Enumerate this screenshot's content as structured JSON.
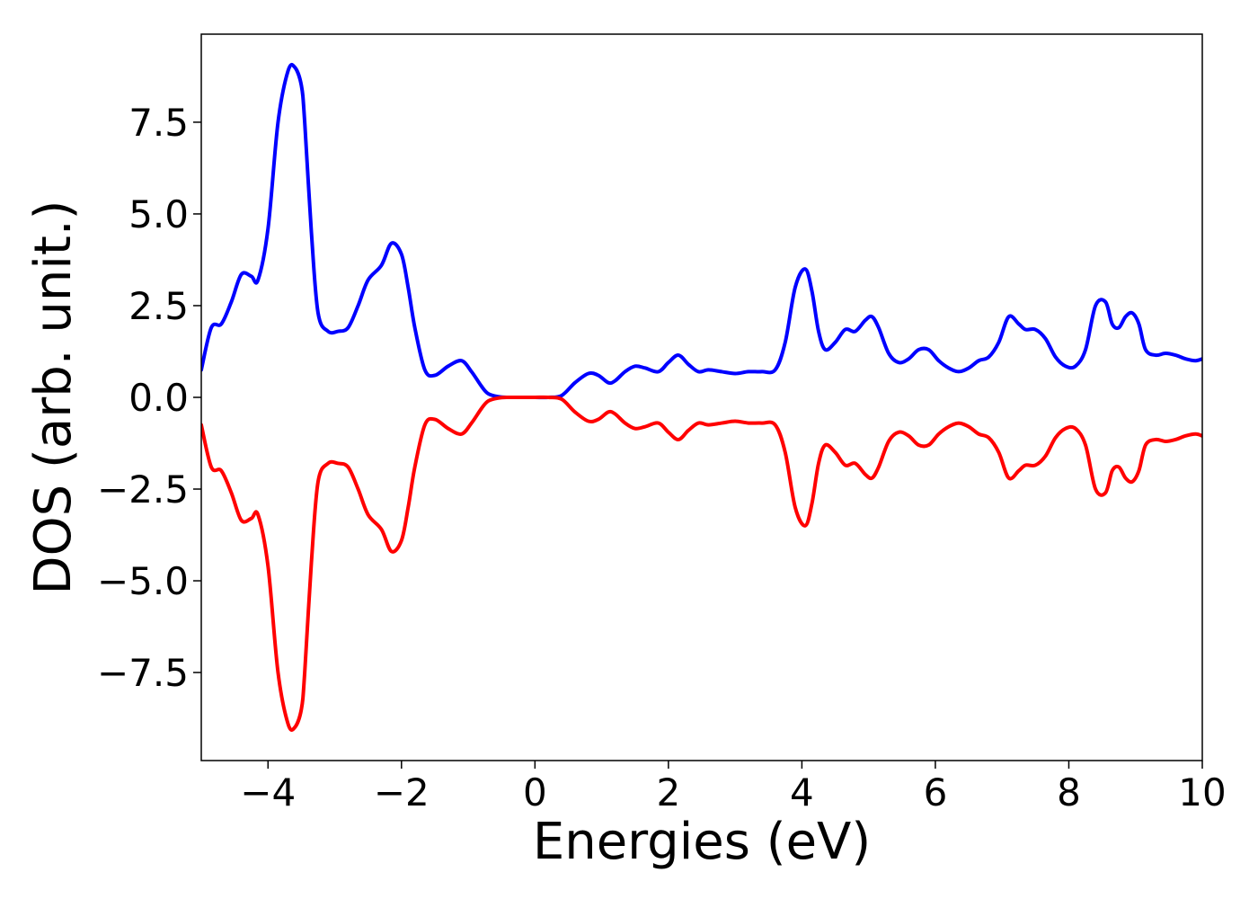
{
  "chart_data": {
    "type": "line",
    "title": "",
    "xlabel": "Energies (eV)",
    "ylabel": "DOS (arb. unit.)",
    "xlim": [
      -5,
      10
    ],
    "ylim": [
      -9.9,
      9.9
    ],
    "grid": false,
    "legend": "none",
    "x_ticks": [
      {
        "value": -4,
        "label": "−4"
      },
      {
        "value": -2,
        "label": "−2"
      },
      {
        "value": 0,
        "label": "0"
      },
      {
        "value": 2,
        "label": "2"
      },
      {
        "value": 4,
        "label": "4"
      },
      {
        "value": 6,
        "label": "6"
      },
      {
        "value": 8,
        "label": "8"
      },
      {
        "value": 10,
        "label": "10"
      }
    ],
    "y_ticks": [
      {
        "value": 7.5,
        "label": "7.5"
      },
      {
        "value": 5.0,
        "label": "5.0"
      },
      {
        "value": 2.5,
        "label": "2.5"
      },
      {
        "value": 0.0,
        "label": "0.0"
      },
      {
        "value": -2.5,
        "label": "−2.5"
      },
      {
        "value": -5.0,
        "label": "−5.0"
      },
      {
        "value": -7.5,
        "label": "−7.5"
      }
    ],
    "series": [
      {
        "color": "#0000ff",
        "x": [
          -5.0,
          -4.85,
          -4.7,
          -4.55,
          -4.4,
          -4.25,
          -4.15,
          -4.0,
          -3.85,
          -3.7,
          -3.6,
          -3.5,
          -3.45,
          -3.35,
          -3.25,
          -3.1,
          -2.95,
          -2.8,
          -2.65,
          -2.5,
          -2.3,
          -2.15,
          -2.0,
          -1.9,
          -1.8,
          -1.65,
          -1.5,
          -1.3,
          -1.1,
          -0.95,
          -0.8,
          -0.7,
          -0.55,
          -0.4,
          -0.2,
          0.0,
          0.2,
          0.4,
          0.6,
          0.8,
          0.95,
          1.1,
          1.2,
          1.35,
          1.5,
          1.65,
          1.85,
          2.0,
          2.15,
          2.3,
          2.45,
          2.6,
          2.8,
          3.0,
          3.2,
          3.4,
          3.6,
          3.75,
          3.9,
          4.05,
          4.15,
          4.25,
          4.35,
          4.5,
          4.65,
          4.8,
          4.95,
          5.05,
          5.15,
          5.3,
          5.45,
          5.6,
          5.75,
          5.9,
          6.05,
          6.2,
          6.35,
          6.5,
          6.65,
          6.8,
          6.95,
          7.1,
          7.25,
          7.35,
          7.5,
          7.65,
          7.8,
          7.95,
          8.1,
          8.25,
          8.4,
          8.55,
          8.65,
          8.75,
          8.85,
          8.95,
          9.05,
          9.15,
          9.3,
          9.45,
          9.6,
          9.75,
          9.9,
          10.0
        ],
        "y": [
          0.75,
          1.9,
          2.0,
          2.6,
          3.35,
          3.3,
          3.2,
          4.6,
          7.5,
          8.9,
          9.0,
          8.5,
          7.5,
          4.5,
          2.3,
          1.8,
          1.8,
          1.9,
          2.5,
          3.2,
          3.6,
          4.2,
          3.9,
          3.0,
          1.9,
          0.75,
          0.6,
          0.85,
          1.0,
          0.7,
          0.3,
          0.1,
          0.02,
          0.0,
          0.0,
          0.0,
          0.0,
          0.05,
          0.4,
          0.65,
          0.6,
          0.4,
          0.45,
          0.7,
          0.85,
          0.8,
          0.7,
          0.95,
          1.15,
          0.9,
          0.7,
          0.75,
          0.7,
          0.65,
          0.7,
          0.7,
          0.75,
          1.5,
          3.0,
          3.5,
          2.9,
          1.8,
          1.3,
          1.5,
          1.85,
          1.8,
          2.1,
          2.2,
          1.9,
          1.2,
          0.95,
          1.05,
          1.3,
          1.3,
          1.0,
          0.8,
          0.7,
          0.8,
          1.0,
          1.1,
          1.5,
          2.2,
          2.0,
          1.85,
          1.85,
          1.6,
          1.1,
          0.85,
          0.85,
          1.3,
          2.5,
          2.6,
          2.0,
          1.9,
          2.2,
          2.3,
          2.0,
          1.3,
          1.15,
          1.2,
          1.15,
          1.05,
          1.0,
          1.05
        ]
      },
      {
        "color": "#ff0000",
        "x": [
          -5.0,
          -4.85,
          -4.7,
          -4.55,
          -4.4,
          -4.25,
          -4.15,
          -4.0,
          -3.85,
          -3.7,
          -3.6,
          -3.5,
          -3.45,
          -3.35,
          -3.25,
          -3.1,
          -2.95,
          -2.8,
          -2.65,
          -2.5,
          -2.3,
          -2.15,
          -2.0,
          -1.9,
          -1.8,
          -1.65,
          -1.5,
          -1.3,
          -1.1,
          -0.95,
          -0.8,
          -0.7,
          -0.55,
          -0.4,
          -0.2,
          0.0,
          0.2,
          0.4,
          0.6,
          0.8,
          0.95,
          1.1,
          1.2,
          1.35,
          1.5,
          1.65,
          1.85,
          2.0,
          2.15,
          2.3,
          2.45,
          2.6,
          2.8,
          3.0,
          3.2,
          3.4,
          3.6,
          3.75,
          3.9,
          4.05,
          4.15,
          4.25,
          4.35,
          4.5,
          4.65,
          4.8,
          4.95,
          5.05,
          5.15,
          5.3,
          5.45,
          5.6,
          5.75,
          5.9,
          6.05,
          6.2,
          6.35,
          6.5,
          6.65,
          6.8,
          6.95,
          7.1,
          7.25,
          7.35,
          7.5,
          7.65,
          7.8,
          7.95,
          8.1,
          8.25,
          8.4,
          8.55,
          8.65,
          8.75,
          8.85,
          8.95,
          9.05,
          9.15,
          9.3,
          9.45,
          9.6,
          9.75,
          9.9,
          10.0
        ],
        "y": [
          -0.75,
          -1.9,
          -2.0,
          -2.6,
          -3.35,
          -3.3,
          -3.2,
          -4.6,
          -7.5,
          -8.9,
          -9.0,
          -8.5,
          -7.5,
          -4.5,
          -2.3,
          -1.8,
          -1.8,
          -1.9,
          -2.5,
          -3.2,
          -3.6,
          -4.2,
          -3.9,
          -3.0,
          -1.9,
          -0.75,
          -0.6,
          -0.85,
          -1.0,
          -0.7,
          -0.3,
          -0.1,
          -0.02,
          0.0,
          0.0,
          0.0,
          0.0,
          -0.05,
          -0.4,
          -0.65,
          -0.6,
          -0.4,
          -0.45,
          -0.7,
          -0.85,
          -0.8,
          -0.7,
          -0.95,
          -1.15,
          -0.9,
          -0.7,
          -0.75,
          -0.7,
          -0.65,
          -0.7,
          -0.7,
          -0.75,
          -1.5,
          -3.0,
          -3.5,
          -2.9,
          -1.8,
          -1.3,
          -1.5,
          -1.85,
          -1.8,
          -2.1,
          -2.2,
          -1.9,
          -1.2,
          -0.95,
          -1.05,
          -1.3,
          -1.3,
          -1.0,
          -0.8,
          -0.7,
          -0.8,
          -1.0,
          -1.1,
          -1.5,
          -2.2,
          -2.0,
          -1.85,
          -1.85,
          -1.6,
          -1.1,
          -0.85,
          -0.85,
          -1.3,
          -2.5,
          -2.6,
          -2.0,
          -1.9,
          -2.2,
          -2.3,
          -2.0,
          -1.3,
          -1.15,
          -1.2,
          -1.15,
          -1.05,
          -1.0,
          -1.05
        ]
      }
    ]
  }
}
